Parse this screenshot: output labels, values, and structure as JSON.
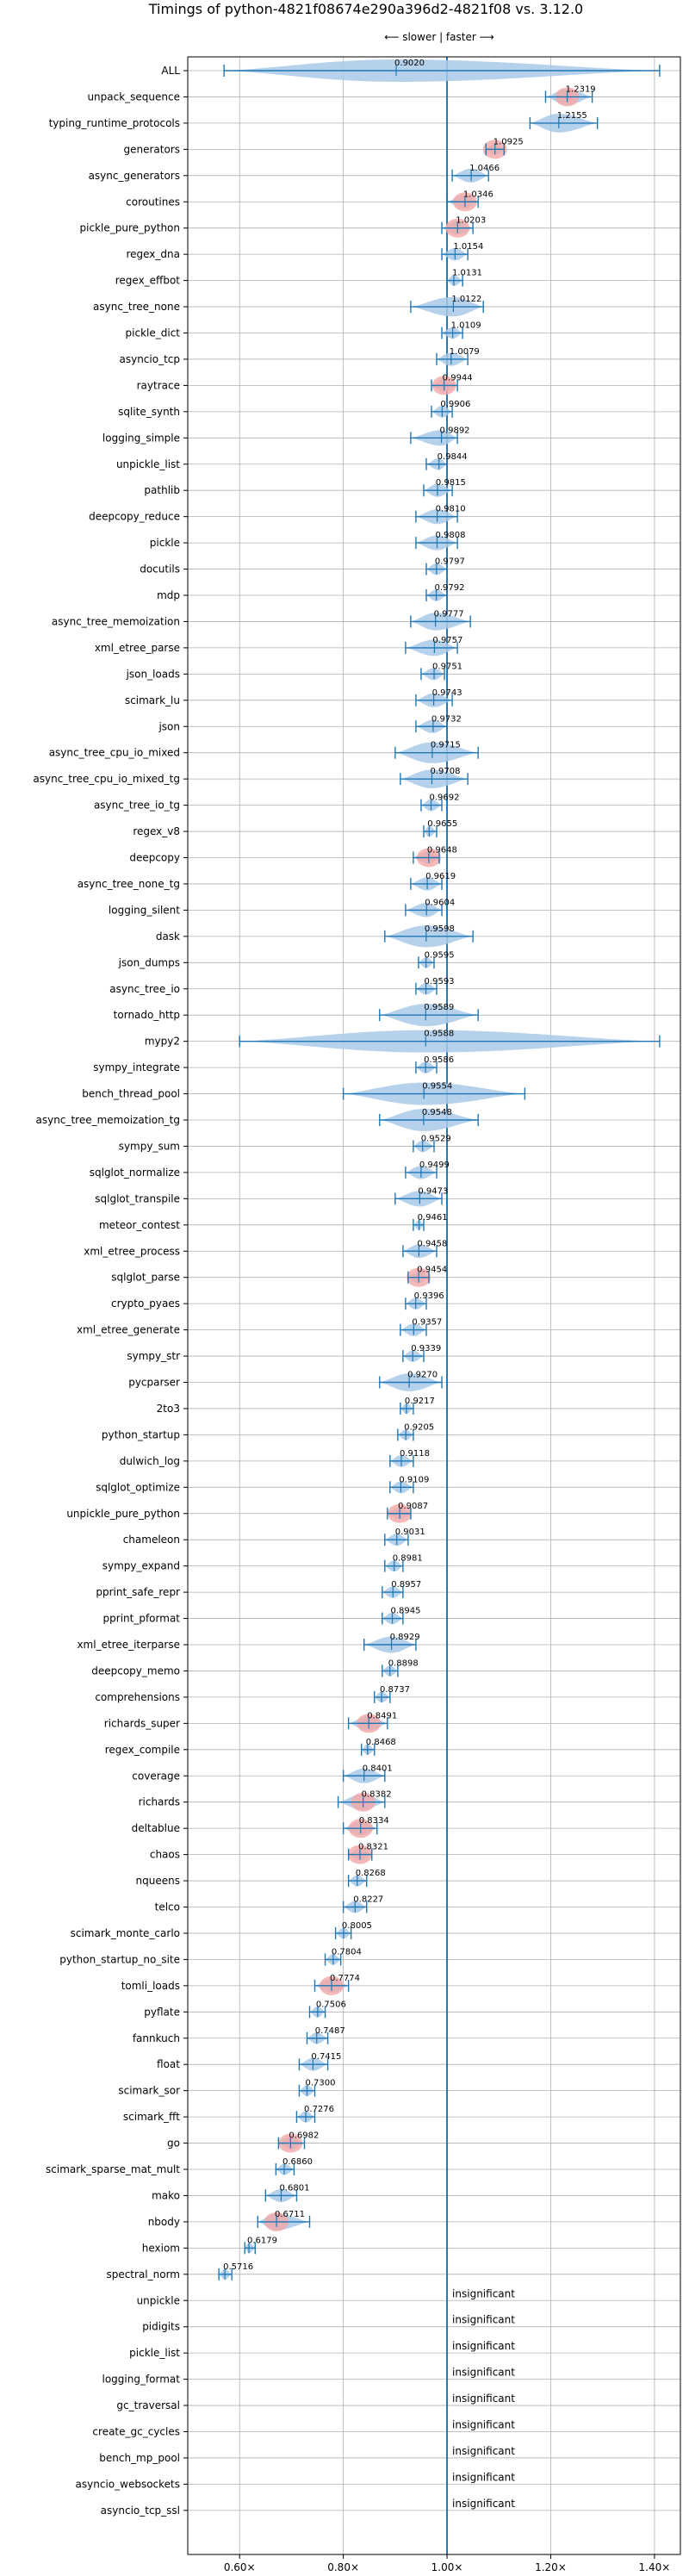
{
  "chart_data": {
    "type": "violin",
    "title": "Timings of python-4821f08674e290a396d2-4821f08 vs. 3.12.0",
    "subtitle": "⟵ slower | faster ⟶",
    "xlim": [
      0.5,
      1.45
    ],
    "xticks": [
      0.6,
      0.8,
      1.0,
      1.2,
      1.4
    ],
    "xtick_labels": [
      "0.60×",
      "0.80×",
      "1.00×",
      "1.20×",
      "1.40×"
    ],
    "grid": true,
    "reference_line": 1.0,
    "colors": {
      "violin": "#a9c9e8",
      "line": "#1f77b4",
      "highlight": "#f4a7a7"
    },
    "benchmarks": [
      {
        "name": "ALL",
        "value": 0.902,
        "label": "0.9020",
        "min": 0.57,
        "max": 1.41,
        "highlight": false
      },
      {
        "name": "unpack_sequence",
        "value": 1.2319,
        "label": "1.2319",
        "min": 1.19,
        "max": 1.28,
        "highlight": true
      },
      {
        "name": "typing_runtime_protocols",
        "value": 1.2155,
        "label": "1.2155",
        "min": 1.16,
        "max": 1.29,
        "highlight": false
      },
      {
        "name": "generators",
        "value": 1.0925,
        "label": "1.0925",
        "min": 1.075,
        "max": 1.11,
        "highlight": true
      },
      {
        "name": "async_generators",
        "value": 1.0466,
        "label": "1.0466",
        "min": 1.01,
        "max": 1.08,
        "highlight": false
      },
      {
        "name": "coroutines",
        "value": 1.0346,
        "label": "1.0346",
        "min": 1.0,
        "max": 1.06,
        "highlight": true
      },
      {
        "name": "pickle_pure_python",
        "value": 1.0203,
        "label": "1.0203",
        "min": 0.99,
        "max": 1.05,
        "highlight": true
      },
      {
        "name": "regex_dna",
        "value": 1.0154,
        "label": "1.0154",
        "min": 0.99,
        "max": 1.04,
        "highlight": false
      },
      {
        "name": "regex_effbot",
        "value": 1.0131,
        "label": "1.0131",
        "min": 1.0,
        "max": 1.03,
        "highlight": false
      },
      {
        "name": "async_tree_none",
        "value": 1.0122,
        "label": "1.0122",
        "min": 0.93,
        "max": 1.07,
        "highlight": false
      },
      {
        "name": "pickle_dict",
        "value": 1.0109,
        "label": "1.0109",
        "min": 0.99,
        "max": 1.03,
        "highlight": false
      },
      {
        "name": "asyncio_tcp",
        "value": 1.0079,
        "label": "1.0079",
        "min": 0.98,
        "max": 1.04,
        "highlight": false
      },
      {
        "name": "raytrace",
        "value": 0.9944,
        "label": "0.9944",
        "min": 0.97,
        "max": 1.02,
        "highlight": true
      },
      {
        "name": "sqlite_synth",
        "value": 0.9906,
        "label": "0.9906",
        "min": 0.97,
        "max": 1.01,
        "highlight": false
      },
      {
        "name": "logging_simple",
        "value": 0.9892,
        "label": "0.9892",
        "min": 0.93,
        "max": 1.02,
        "highlight": false
      },
      {
        "name": "unpickle_list",
        "value": 0.9844,
        "label": "0.9844",
        "min": 0.96,
        "max": 1.0,
        "highlight": false
      },
      {
        "name": "pathlib",
        "value": 0.9815,
        "label": "0.9815",
        "min": 0.955,
        "max": 1.01,
        "highlight": false
      },
      {
        "name": "deepcopy_reduce",
        "value": 0.981,
        "label": "0.9810",
        "min": 0.94,
        "max": 1.02,
        "highlight": false
      },
      {
        "name": "pickle",
        "value": 0.9808,
        "label": "0.9808",
        "min": 0.94,
        "max": 1.02,
        "highlight": false
      },
      {
        "name": "docutils",
        "value": 0.9797,
        "label": "0.9797",
        "min": 0.96,
        "max": 1.0,
        "highlight": false
      },
      {
        "name": "mdp",
        "value": 0.9792,
        "label": "0.9792",
        "min": 0.96,
        "max": 1.0,
        "highlight": false
      },
      {
        "name": "async_tree_memoization",
        "value": 0.9777,
        "label": "0.9777",
        "min": 0.93,
        "max": 1.045,
        "highlight": false
      },
      {
        "name": "xml_etree_parse",
        "value": 0.9757,
        "label": "0.9757",
        "min": 0.92,
        "max": 1.02,
        "highlight": false
      },
      {
        "name": "json_loads",
        "value": 0.9751,
        "label": "0.9751",
        "min": 0.95,
        "max": 0.995,
        "highlight": false
      },
      {
        "name": "scimark_lu",
        "value": 0.9743,
        "label": "0.9743",
        "min": 0.94,
        "max": 1.01,
        "highlight": false
      },
      {
        "name": "json",
        "value": 0.9732,
        "label": "0.9732",
        "min": 0.94,
        "max": 1.0,
        "highlight": false
      },
      {
        "name": "async_tree_cpu_io_mixed",
        "value": 0.9715,
        "label": "0.9715",
        "min": 0.9,
        "max": 1.06,
        "highlight": false
      },
      {
        "name": "async_tree_cpu_io_mixed_tg",
        "value": 0.9708,
        "label": "0.9708",
        "min": 0.91,
        "max": 1.04,
        "highlight": false
      },
      {
        "name": "async_tree_io_tg",
        "value": 0.9692,
        "label": "0.9692",
        "min": 0.95,
        "max": 0.99,
        "highlight": false
      },
      {
        "name": "regex_v8",
        "value": 0.9655,
        "label": "0.9655",
        "min": 0.955,
        "max": 0.98,
        "highlight": false
      },
      {
        "name": "deepcopy",
        "value": 0.9648,
        "label": "0.9648",
        "min": 0.935,
        "max": 0.985,
        "highlight": true
      },
      {
        "name": "async_tree_none_tg",
        "value": 0.9619,
        "label": "0.9619",
        "min": 0.93,
        "max": 0.99,
        "highlight": false
      },
      {
        "name": "logging_silent",
        "value": 0.9604,
        "label": "0.9604",
        "min": 0.92,
        "max": 0.99,
        "highlight": false
      },
      {
        "name": "dask",
        "value": 0.9598,
        "label": "0.9598",
        "min": 0.88,
        "max": 1.05,
        "highlight": false
      },
      {
        "name": "json_dumps",
        "value": 0.9595,
        "label": "0.9595",
        "min": 0.945,
        "max": 0.975,
        "highlight": false
      },
      {
        "name": "async_tree_io",
        "value": 0.9593,
        "label": "0.9593",
        "min": 0.94,
        "max": 0.98,
        "highlight": false
      },
      {
        "name": "tornado_http",
        "value": 0.9589,
        "label": "0.9589",
        "min": 0.87,
        "max": 1.06,
        "highlight": false
      },
      {
        "name": "mypy2",
        "value": 0.9588,
        "label": "0.9588",
        "min": 0.6,
        "max": 1.41,
        "highlight": false
      },
      {
        "name": "sympy_integrate",
        "value": 0.9586,
        "label": "0.9586",
        "min": 0.94,
        "max": 0.98,
        "highlight": false
      },
      {
        "name": "bench_thread_pool",
        "value": 0.9554,
        "label": "0.9554",
        "min": 0.8,
        "max": 1.15,
        "highlight": false
      },
      {
        "name": "async_tree_memoization_tg",
        "value": 0.9548,
        "label": "0.9548",
        "min": 0.87,
        "max": 1.06,
        "highlight": false
      },
      {
        "name": "sympy_sum",
        "value": 0.9529,
        "label": "0.9529",
        "min": 0.935,
        "max": 0.975,
        "highlight": false
      },
      {
        "name": "sqlglot_normalize",
        "value": 0.9499,
        "label": "0.9499",
        "min": 0.92,
        "max": 0.98,
        "highlight": false
      },
      {
        "name": "sqlglot_transpile",
        "value": 0.9473,
        "label": "0.9473",
        "min": 0.9,
        "max": 0.99,
        "highlight": false
      },
      {
        "name": "meteor_contest",
        "value": 0.9461,
        "label": "0.9461",
        "min": 0.935,
        "max": 0.955,
        "highlight": false
      },
      {
        "name": "xml_etree_process",
        "value": 0.9458,
        "label": "0.9458",
        "min": 0.915,
        "max": 0.98,
        "highlight": false
      },
      {
        "name": "sqlglot_parse",
        "value": 0.9454,
        "label": "0.9454",
        "min": 0.925,
        "max": 0.965,
        "highlight": true
      },
      {
        "name": "crypto_pyaes",
        "value": 0.9396,
        "label": "0.9396",
        "min": 0.92,
        "max": 0.96,
        "highlight": false
      },
      {
        "name": "xml_etree_generate",
        "value": 0.9357,
        "label": "0.9357",
        "min": 0.91,
        "max": 0.96,
        "highlight": false
      },
      {
        "name": "sympy_str",
        "value": 0.9339,
        "label": "0.9339",
        "min": 0.915,
        "max": 0.955,
        "highlight": false
      },
      {
        "name": "pycparser",
        "value": 0.927,
        "label": "0.9270",
        "min": 0.87,
        "max": 0.99,
        "highlight": false
      },
      {
        "name": "2to3",
        "value": 0.9217,
        "label": "0.9217",
        "min": 0.91,
        "max": 0.935,
        "highlight": false
      },
      {
        "name": "python_startup",
        "value": 0.9205,
        "label": "0.9205",
        "min": 0.905,
        "max": 0.935,
        "highlight": false
      },
      {
        "name": "dulwich_log",
        "value": 0.9118,
        "label": "0.9118",
        "min": 0.89,
        "max": 0.935,
        "highlight": false
      },
      {
        "name": "sqlglot_optimize",
        "value": 0.9109,
        "label": "0.9109",
        "min": 0.89,
        "max": 0.935,
        "highlight": false
      },
      {
        "name": "unpickle_pure_python",
        "value": 0.9087,
        "label": "0.9087",
        "min": 0.885,
        "max": 0.93,
        "highlight": true
      },
      {
        "name": "chameleon",
        "value": 0.9031,
        "label": "0.9031",
        "min": 0.88,
        "max": 0.925,
        "highlight": false
      },
      {
        "name": "sympy_expand",
        "value": 0.8981,
        "label": "0.8981",
        "min": 0.88,
        "max": 0.915,
        "highlight": false
      },
      {
        "name": "pprint_safe_repr",
        "value": 0.8957,
        "label": "0.8957",
        "min": 0.875,
        "max": 0.915,
        "highlight": false
      },
      {
        "name": "pprint_pformat",
        "value": 0.8945,
        "label": "0.8945",
        "min": 0.875,
        "max": 0.915,
        "highlight": false
      },
      {
        "name": "xml_etree_iterparse",
        "value": 0.8929,
        "label": "0.8929",
        "min": 0.84,
        "max": 0.94,
        "highlight": false
      },
      {
        "name": "deepcopy_memo",
        "value": 0.8898,
        "label": "0.8898",
        "min": 0.875,
        "max": 0.905,
        "highlight": false
      },
      {
        "name": "comprehensions",
        "value": 0.8737,
        "label": "0.8737",
        "min": 0.86,
        "max": 0.89,
        "highlight": false
      },
      {
        "name": "richards_super",
        "value": 0.8491,
        "label": "0.8491",
        "min": 0.81,
        "max": 0.885,
        "highlight": true
      },
      {
        "name": "regex_compile",
        "value": 0.8468,
        "label": "0.8468",
        "min": 0.835,
        "max": 0.86,
        "highlight": false
      },
      {
        "name": "coverage",
        "value": 0.8401,
        "label": "0.8401",
        "min": 0.8,
        "max": 0.88,
        "highlight": false
      },
      {
        "name": "richards",
        "value": 0.8382,
        "label": "0.8382",
        "min": 0.79,
        "max": 0.88,
        "highlight": true
      },
      {
        "name": "deltablue",
        "value": 0.8334,
        "label": "0.8334",
        "min": 0.8,
        "max": 0.865,
        "highlight": true
      },
      {
        "name": "chaos",
        "value": 0.8321,
        "label": "0.8321",
        "min": 0.81,
        "max": 0.855,
        "highlight": true
      },
      {
        "name": "nqueens",
        "value": 0.8268,
        "label": "0.8268",
        "min": 0.81,
        "max": 0.845,
        "highlight": false
      },
      {
        "name": "telco",
        "value": 0.8227,
        "label": "0.8227",
        "min": 0.8,
        "max": 0.845,
        "highlight": false
      },
      {
        "name": "scimark_monte_carlo",
        "value": 0.8005,
        "label": "0.8005",
        "min": 0.785,
        "max": 0.815,
        "highlight": false
      },
      {
        "name": "python_startup_no_site",
        "value": 0.7804,
        "label": "0.7804",
        "min": 0.765,
        "max": 0.795,
        "highlight": false
      },
      {
        "name": "tomli_loads",
        "value": 0.7774,
        "label": "0.7774",
        "min": 0.745,
        "max": 0.81,
        "highlight": true
      },
      {
        "name": "pyflate",
        "value": 0.7506,
        "label": "0.7506",
        "min": 0.735,
        "max": 0.765,
        "highlight": false
      },
      {
        "name": "fannkuch",
        "value": 0.7487,
        "label": "0.7487",
        "min": 0.73,
        "max": 0.77,
        "highlight": false
      },
      {
        "name": "float",
        "value": 0.7415,
        "label": "0.7415",
        "min": 0.715,
        "max": 0.77,
        "highlight": false
      },
      {
        "name": "scimark_sor",
        "value": 0.73,
        "label": "0.7300",
        "min": 0.715,
        "max": 0.745,
        "highlight": false
      },
      {
        "name": "scimark_fft",
        "value": 0.7276,
        "label": "0.7276",
        "min": 0.71,
        "max": 0.745,
        "highlight": false
      },
      {
        "name": "go",
        "value": 0.6982,
        "label": "0.6982",
        "min": 0.675,
        "max": 0.725,
        "highlight": true
      },
      {
        "name": "scimark_sparse_mat_mult",
        "value": 0.686,
        "label": "0.6860",
        "min": 0.67,
        "max": 0.705,
        "highlight": false
      },
      {
        "name": "mako",
        "value": 0.6801,
        "label": "0.6801",
        "min": 0.65,
        "max": 0.71,
        "highlight": false
      },
      {
        "name": "nbody",
        "value": 0.6711,
        "label": "0.6711",
        "min": 0.635,
        "max": 0.735,
        "highlight": true
      },
      {
        "name": "hexiom",
        "value": 0.6179,
        "label": "0.6179",
        "min": 0.61,
        "max": 0.63,
        "highlight": false
      },
      {
        "name": "spectral_norm",
        "value": 0.5716,
        "label": "0.5716",
        "min": 0.56,
        "max": 0.585,
        "highlight": false
      }
    ],
    "insignificant_label": "insignificant",
    "insignificant": [
      "unpickle",
      "pidigits",
      "pickle_list",
      "logging_format",
      "gc_traversal",
      "create_gc_cycles",
      "bench_mp_pool",
      "asyncio_websockets",
      "asyncio_tcp_ssl"
    ]
  }
}
